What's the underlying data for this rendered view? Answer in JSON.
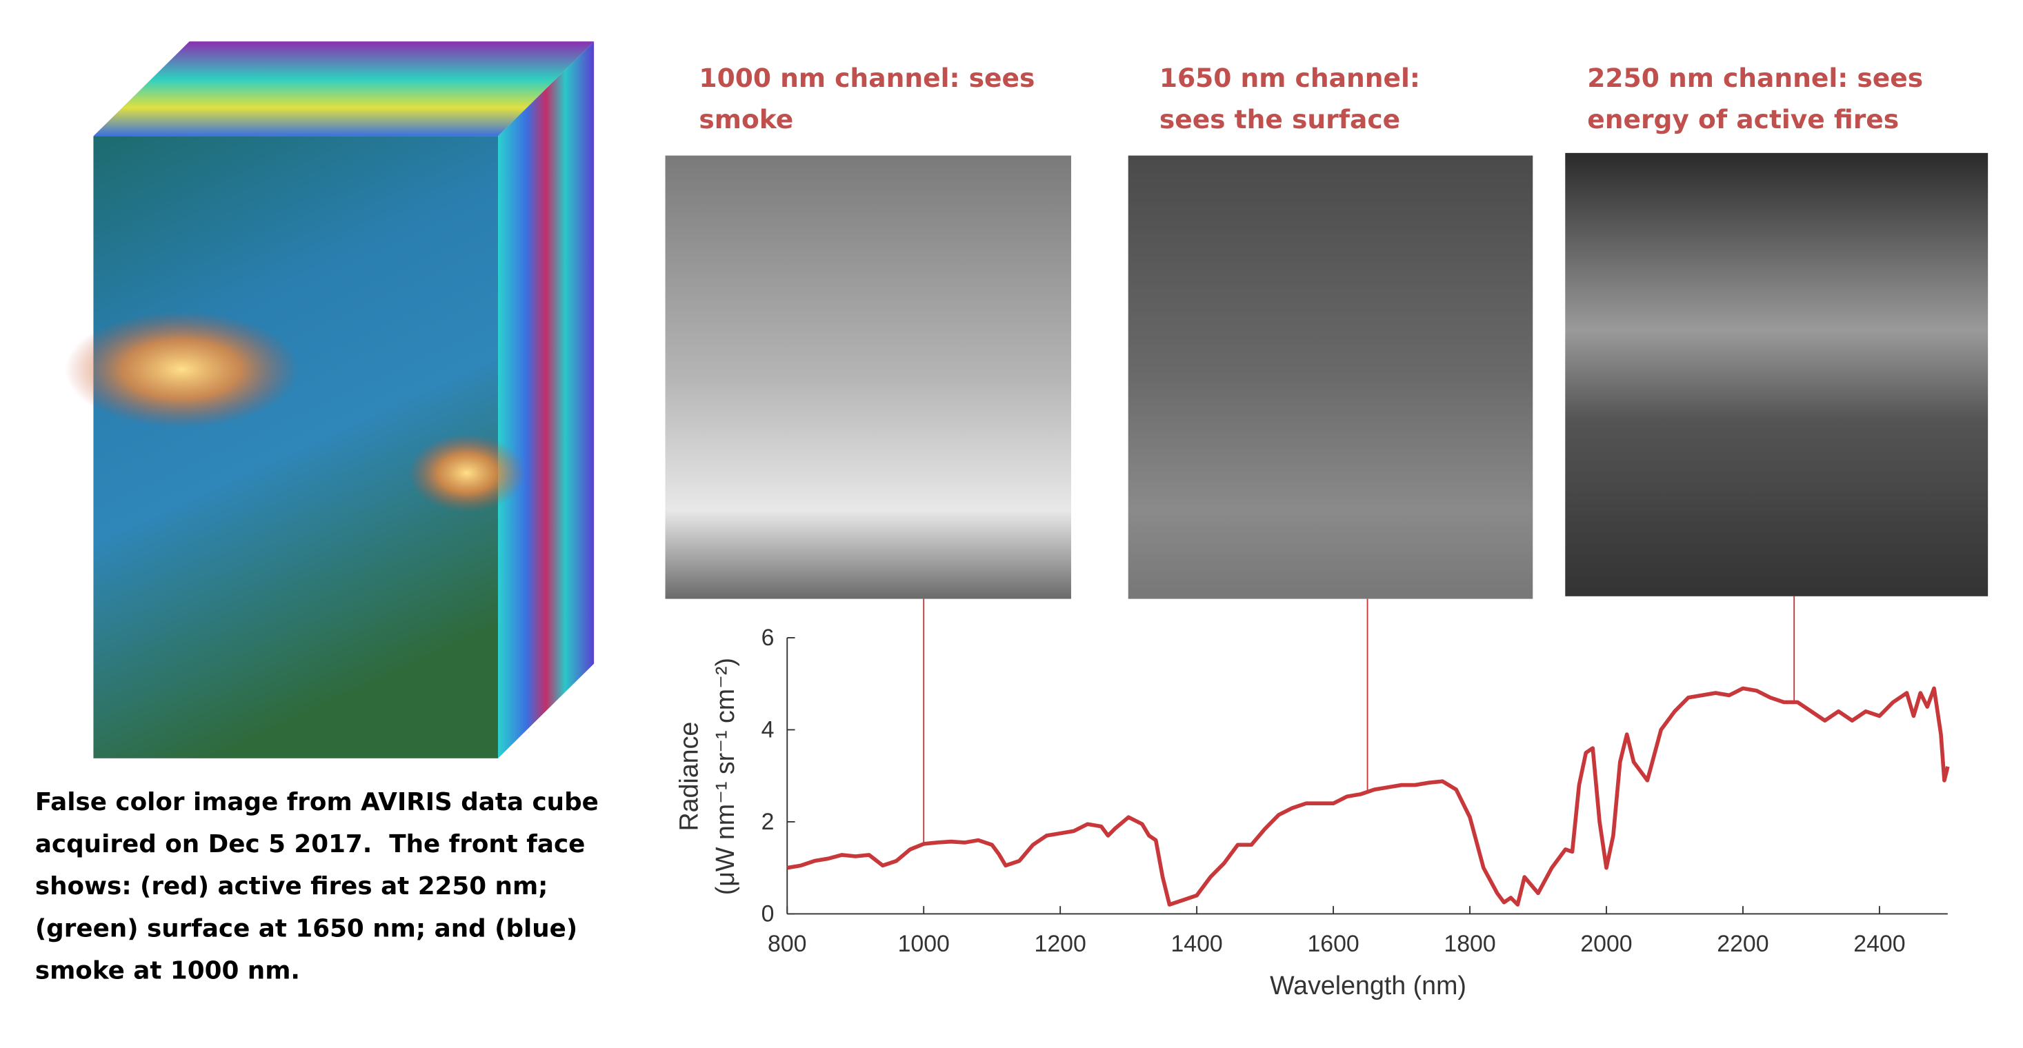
{
  "chart_data": {
    "type": "line",
    "caption": [
      "False color image from AVIRIS data cube",
      "acquired on Dec 5 2017.  The front face",
      "shows: (red) active fires at 2250 nm;",
      "(green) surface at 1650 nm; and (blue)",
      "smoke at 1000 nm."
    ],
    "annotations": [
      {
        "lines": [
          "1000 nm channel: sees",
          "smoke"
        ],
        "x": 1000
      },
      {
        "lines": [
          "1650 nm channel:",
          "sees the surface"
        ],
        "x": 1650
      },
      {
        "lines": [
          "2250 nm channel: sees",
          "energy of active fires"
        ],
        "x": 2275
      }
    ],
    "xlabel": "Wavelength (nm)",
    "ylabel": [
      "Radiance",
      "(μW nm⁻¹ sr⁻¹ cm⁻²)"
    ],
    "color": "#c8383a",
    "x": [
      800,
      820,
      840,
      860,
      880,
      900,
      920,
      940,
      960,
      980,
      1000,
      1020,
      1040,
      1060,
      1080,
      1100,
      1110,
      1120,
      1140,
      1160,
      1180,
      1200,
      1220,
      1240,
      1260,
      1270,
      1280,
      1300,
      1320,
      1330,
      1340,
      1350,
      1360,
      1380,
      1400,
      1420,
      1440,
      1460,
      1480,
      1500,
      1520,
      1540,
      1560,
      1580,
      1600,
      1620,
      1640,
      1660,
      1680,
      1700,
      1720,
      1740,
      1760,
      1780,
      1800,
      1820,
      1840,
      1850,
      1860,
      1870,
      1880,
      1900,
      1920,
      1940,
      1950,
      1960,
      1970,
      1980,
      1990,
      2000,
      2010,
      2020,
      2030,
      2040,
      2060,
      2080,
      2100,
      2120,
      2140,
      2160,
      2180,
      2200,
      2220,
      2240,
      2260,
      2280,
      2300,
      2320,
      2340,
      2360,
      2380,
      2400,
      2420,
      2440,
      2450,
      2460,
      2470,
      2480,
      2490,
      2495,
      2500
    ],
    "values": [
      1.0,
      1.05,
      1.15,
      1.2,
      1.28,
      1.25,
      1.28,
      1.05,
      1.15,
      1.4,
      1.52,
      1.55,
      1.57,
      1.55,
      1.6,
      1.5,
      1.3,
      1.05,
      1.15,
      1.5,
      1.7,
      1.75,
      1.8,
      1.95,
      1.9,
      1.7,
      1.85,
      2.1,
      1.95,
      1.7,
      1.6,
      0.8,
      0.2,
      0.3,
      0.4,
      0.8,
      1.1,
      1.5,
      1.5,
      1.85,
      2.15,
      2.3,
      2.4,
      2.4,
      2.4,
      2.55,
      2.6,
      2.7,
      2.75,
      2.8,
      2.8,
      2.85,
      2.88,
      2.7,
      2.1,
      1.0,
      0.45,
      0.25,
      0.35,
      0.2,
      0.8,
      0.45,
      1.0,
      1.4,
      1.35,
      2.8,
      3.5,
      3.6,
      2.0,
      1.0,
      1.7,
      3.3,
      3.9,
      3.3,
      2.9,
      4.0,
      4.4,
      4.7,
      4.75,
      4.8,
      4.75,
      4.9,
      4.85,
      4.7,
      4.6,
      4.6,
      4.4,
      4.2,
      4.4,
      4.2,
      4.4,
      4.3,
      4.6,
      4.8,
      4.3,
      4.8,
      4.5,
      4.9,
      3.9,
      2.9,
      3.2
    ],
    "xlim": [
      800,
      2500
    ],
    "ylim": [
      0,
      6
    ],
    "xticks": [
      800,
      1000,
      1200,
      1400,
      1600,
      1800,
      2000,
      2200,
      2400
    ],
    "yticks": [
      0,
      2,
      4,
      6
    ]
  }
}
